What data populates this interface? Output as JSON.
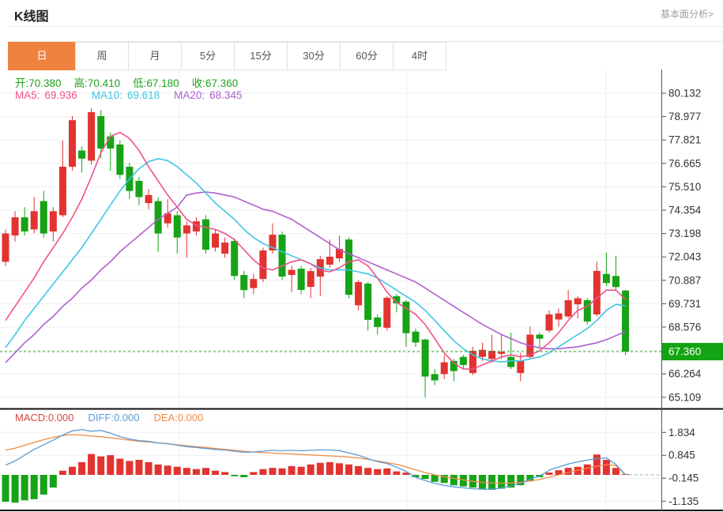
{
  "header": {
    "title": "K线图",
    "link": "基本面分析>"
  },
  "tabs": {
    "items": [
      "日",
      "周",
      "月",
      "5分",
      "15分",
      "30分",
      "60分",
      "4时"
    ],
    "active_index": 0
  },
  "quote": {
    "open_label": "开:",
    "open": "70.380",
    "high_label": "高:",
    "high": "70.410",
    "low_label": "低:",
    "low": "67.180",
    "close_label": "收:",
    "close": "67.360"
  },
  "ma": {
    "ma5_label": "MA5:",
    "ma5": "69.936",
    "ma10_label": "MA10:",
    "ma10": "69.618",
    "ma20_label": "MA20:",
    "ma20": "68.345"
  },
  "macd_row": {
    "macd_label": "MACD:",
    "macd": "0.000",
    "diff_label": "DIFF:",
    "diff": "0.000",
    "dea_label": "DEA:",
    "dea": "0.000"
  },
  "colors": {
    "up": "#e23330",
    "down": "#16a316",
    "ma5": "#f0508c",
    "ma10": "#3fc6e4",
    "ma20": "#b05fd0",
    "diff_line": "#5b9bd5",
    "dea_line": "#ef8b44",
    "price_line": "#1fa51f",
    "badge_bg": "#12a412",
    "badge_text": "#ffffff",
    "active_tab": "#f0823f",
    "axis_text": "#333333"
  },
  "chart_data": {
    "type": "candlestick+macd",
    "main": {
      "type": "candlestick",
      "y_axis_labels": [
        "80.132",
        "78.977",
        "77.821",
        "76.665",
        "75.510",
        "74.354",
        "73.198",
        "72.043",
        "70.887",
        "69.731",
        "68.576",
        "",
        "66.264",
        "65.109"
      ],
      "axis_top_value": 80.132,
      "axis_step": 1.156,
      "current_price": 67.36,
      "current_price_label": "67.360",
      "legend": [
        "MA5",
        "MA10",
        "MA20"
      ],
      "candles": [
        [
          71.8,
          73.4,
          71.6,
          73.2
        ],
        [
          73.1,
          74.3,
          72.8,
          74.0
        ],
        [
          74.0,
          74.5,
          73.1,
          73.3
        ],
        [
          73.4,
          75.0,
          73.2,
          74.3
        ],
        [
          74.8,
          75.3,
          73.0,
          73.2
        ],
        [
          73.3,
          74.5,
          72.8,
          74.3
        ],
        [
          74.1,
          77.8,
          74.0,
          76.5
        ],
        [
          76.5,
          79.0,
          76.3,
          78.8
        ],
        [
          77.3,
          77.5,
          76.2,
          76.9
        ],
        [
          76.8,
          79.4,
          76.6,
          79.2
        ],
        [
          79.0,
          79.3,
          76.9,
          77.4
        ],
        [
          78.0,
          78.2,
          76.3,
          77.4
        ],
        [
          77.6,
          77.8,
          75.9,
          76.1
        ],
        [
          76.5,
          76.7,
          74.9,
          75.3
        ],
        [
          75.8,
          76.0,
          74.6,
          75.0
        ],
        [
          74.7,
          75.4,
          74.4,
          75.1
        ],
        [
          74.8,
          75.0,
          72.3,
          73.2
        ],
        [
          73.7,
          74.9,
          73.5,
          74.2
        ],
        [
          74.1,
          74.3,
          72.2,
          73.0
        ],
        [
          73.2,
          73.8,
          72.0,
          73.6
        ],
        [
          73.3,
          74.0,
          73.1,
          73.8
        ],
        [
          73.9,
          74.1,
          72.2,
          72.4
        ],
        [
          72.5,
          73.4,
          72.3,
          73.2
        ],
        [
          72.2,
          73.0,
          72.0,
          72.75
        ],
        [
          72.83,
          72.95,
          70.9,
          71.1
        ],
        [
          71.15,
          71.35,
          70.0,
          70.4
        ],
        [
          70.5,
          71.2,
          70.2,
          70.95
        ],
        [
          70.95,
          72.5,
          70.8,
          72.36
        ],
        [
          72.36,
          73.7,
          72.2,
          73.14
        ],
        [
          73.14,
          73.3,
          70.9,
          71.07
        ],
        [
          71.15,
          71.6,
          70.3,
          71.4
        ],
        [
          71.46,
          71.6,
          70.2,
          70.41
        ],
        [
          70.56,
          71.5,
          70.0,
          71.34
        ],
        [
          71.07,
          72.1,
          70.1,
          71.93
        ],
        [
          71.66,
          72.9,
          71.5,
          72.05
        ],
        [
          71.97,
          73.1,
          71.8,
          72.44
        ],
        [
          72.9,
          73.0,
          70.0,
          70.17
        ],
        [
          69.65,
          70.9,
          69.4,
          70.8
        ],
        [
          70.72,
          70.8,
          68.4,
          68.93
        ],
        [
          69.05,
          69.2,
          68.2,
          68.58
        ],
        [
          68.54,
          70.1,
          68.4,
          70.02
        ],
        [
          70.1,
          70.2,
          69.3,
          69.75
        ],
        [
          69.83,
          69.9,
          67.6,
          68.27
        ],
        [
          68.35,
          68.5,
          67.6,
          67.81
        ],
        [
          67.96,
          68.0,
          65.1,
          66.13
        ],
        [
          66.25,
          66.5,
          65.7,
          65.94
        ],
        [
          66.25,
          67.2,
          66.0,
          66.83
        ],
        [
          66.9,
          67.0,
          65.9,
          66.4
        ],
        [
          67.1,
          67.2,
          66.5,
          66.7
        ],
        [
          66.3,
          67.6,
          66.2,
          67.4
        ],
        [
          67.1,
          67.8,
          66.9,
          67.45
        ],
        [
          67.0,
          68.2,
          66.8,
          67.4
        ],
        [
          67.25,
          68.2,
          67.0,
          67.35
        ],
        [
          67.1,
          68.3,
          66.5,
          66.6
        ],
        [
          66.3,
          67.3,
          65.9,
          66.9
        ],
        [
          67.1,
          68.6,
          67.0,
          68.2
        ],
        [
          68.2,
          68.3,
          67.5,
          68.0
        ],
        [
          68.4,
          69.4,
          68.3,
          69.2
        ],
        [
          68.95,
          69.5,
          68.6,
          69.25
        ],
        [
          69.1,
          70.4,
          69.0,
          69.9
        ],
        [
          69.7,
          70.1,
          69.0,
          70.0
        ],
        [
          69.9,
          70.0,
          68.7,
          68.85
        ],
        [
          69.2,
          71.8,
          69.1,
          71.35
        ],
        [
          71.2,
          72.25,
          70.6,
          70.75
        ],
        [
          71.1,
          72.1,
          70.4,
          70.55
        ],
        [
          70.38,
          70.41,
          67.18,
          67.36
        ]
      ],
      "ma5": [
        68.9,
        69.6,
        70.3,
        71.0,
        71.8,
        72.5,
        73.2,
        74.0,
        74.9,
        76.0,
        77.2,
        78.0,
        78.2,
        77.9,
        77.3,
        76.5,
        75.8,
        75.1,
        74.5,
        73.9,
        73.6,
        73.5,
        73.4,
        73.2,
        72.9,
        72.4,
        71.9,
        71.5,
        71.4,
        71.6,
        71.8,
        71.9,
        71.7,
        71.4,
        71.3,
        71.5,
        71.8,
        71.9,
        71.6,
        71.0,
        70.3,
        69.8,
        69.5,
        69.2,
        68.7,
        68.0,
        67.3,
        66.8,
        66.5,
        66.5,
        66.7,
        66.9,
        67.1,
        67.2,
        67.1,
        67.2,
        67.4,
        67.8,
        68.3,
        68.9,
        69.4,
        69.6,
        70.0,
        70.4,
        70.4,
        69.94
      ],
      "ma10": [
        67.56,
        68.2,
        68.9,
        69.5,
        70.1,
        70.7,
        71.3,
        71.9,
        72.5,
        73.2,
        73.9,
        74.6,
        75.3,
        75.9,
        76.4,
        76.75,
        76.9,
        76.8,
        76.5,
        76.1,
        75.7,
        75.2,
        74.7,
        74.3,
        73.9,
        73.4,
        73.0,
        72.7,
        72.5,
        72.3,
        72.1,
        71.9,
        71.7,
        71.5,
        71.4,
        71.4,
        71.4,
        71.3,
        71.2,
        71.0,
        70.7,
        70.4,
        70.1,
        69.8,
        69.4,
        68.9,
        68.4,
        67.9,
        67.5,
        67.2,
        67.0,
        66.9,
        66.85,
        66.9,
        66.9,
        67.0,
        67.1,
        67.3,
        67.6,
        67.9,
        68.2,
        68.5,
        68.9,
        69.4,
        69.7,
        69.62
      ],
      "ma20": [
        66.82,
        67.3,
        67.8,
        68.2,
        68.7,
        69.1,
        69.6,
        70.0,
        70.5,
        70.9,
        71.4,
        71.8,
        72.3,
        72.7,
        73.1,
        73.5,
        73.9,
        74.2,
        74.5,
        75.1,
        75.2,
        75.25,
        75.2,
        75.1,
        75.0,
        74.8,
        74.6,
        74.4,
        74.3,
        74.1,
        73.9,
        73.6,
        73.3,
        73.0,
        72.7,
        72.4,
        72.2,
        72.0,
        71.8,
        71.6,
        71.4,
        71.2,
        71.0,
        70.8,
        70.5,
        70.2,
        69.9,
        69.6,
        69.3,
        69.0,
        68.7,
        68.45,
        68.2,
        68.0,
        67.8,
        67.65,
        67.55,
        67.5,
        67.5,
        67.55,
        67.6,
        67.7,
        67.8,
        67.95,
        68.15,
        68.35
      ]
    },
    "macd": {
      "type": "bar+line",
      "y_axis_labels": [
        "1.834",
        "0.845",
        "-0.145",
        "-1.135"
      ],
      "hist": [
        -1.16,
        -1.2,
        -1.1,
        -1.05,
        -0.85,
        -0.55,
        0.18,
        0.35,
        0.55,
        0.9,
        0.8,
        0.85,
        0.7,
        0.6,
        0.65,
        0.55,
        0.45,
        0.4,
        0.35,
        0.3,
        0.25,
        0.3,
        0.18,
        0.12,
        -0.06,
        -0.1,
        0.12,
        0.25,
        0.3,
        0.28,
        0.38,
        0.35,
        0.45,
        0.52,
        0.55,
        0.5,
        0.45,
        0.38,
        0.3,
        0.25,
        0.28,
        0.15,
        0.1,
        -0.1,
        -0.18,
        -0.3,
        -0.35,
        -0.45,
        -0.5,
        -0.55,
        -0.6,
        -0.65,
        -0.6,
        -0.55,
        -0.45,
        -0.25,
        -0.1,
        0.1,
        0.2,
        0.3,
        0.35,
        0.45,
        0.88,
        0.65,
        0.3,
        0.02
      ],
      "diff": [
        0.42,
        0.6,
        0.85,
        1.1,
        1.3,
        1.5,
        1.72,
        1.9,
        1.96,
        1.88,
        1.92,
        1.8,
        1.65,
        1.55,
        1.48,
        1.45,
        1.38,
        1.35,
        1.28,
        1.22,
        1.18,
        1.14,
        1.1,
        1.07,
        1.02,
        0.98,
        0.99,
        1.02,
        1.06,
        1.04,
        1.06,
        1.04,
        1.06,
        1.08,
        1.07,
        1.05,
        0.95,
        0.85,
        0.7,
        0.57,
        0.49,
        0.33,
        0.15,
        -0.1,
        -0.25,
        -0.37,
        -0.45,
        -0.52,
        -0.56,
        -0.6,
        -0.62,
        -0.62,
        -0.57,
        -0.48,
        -0.37,
        -0.18,
        -0.05,
        0.2,
        0.34,
        0.47,
        0.56,
        0.64,
        0.7,
        0.73,
        0.45,
        0.0
      ],
      "dea": [
        1.06,
        1.15,
        1.28,
        1.4,
        1.52,
        1.62,
        1.7,
        1.74,
        1.72,
        1.68,
        1.65,
        1.6,
        1.55,
        1.5,
        1.45,
        1.42,
        1.38,
        1.34,
        1.3,
        1.26,
        1.22,
        1.18,
        1.14,
        1.1,
        1.06,
        1.02,
        0.99,
        0.96,
        0.94,
        0.92,
        0.9,
        0.88,
        0.86,
        0.84,
        0.82,
        0.8,
        0.77,
        0.73,
        0.67,
        0.6,
        0.53,
        0.45,
        0.35,
        0.22,
        0.1,
        0.0,
        -0.08,
        -0.15,
        -0.22,
        -0.28,
        -0.32,
        -0.35,
        -0.36,
        -0.35,
        -0.32,
        -0.27,
        -0.2,
        -0.1,
        0.0,
        0.1,
        0.2,
        0.29,
        0.37,
        0.44,
        0.4,
        0.0
      ]
    }
  }
}
